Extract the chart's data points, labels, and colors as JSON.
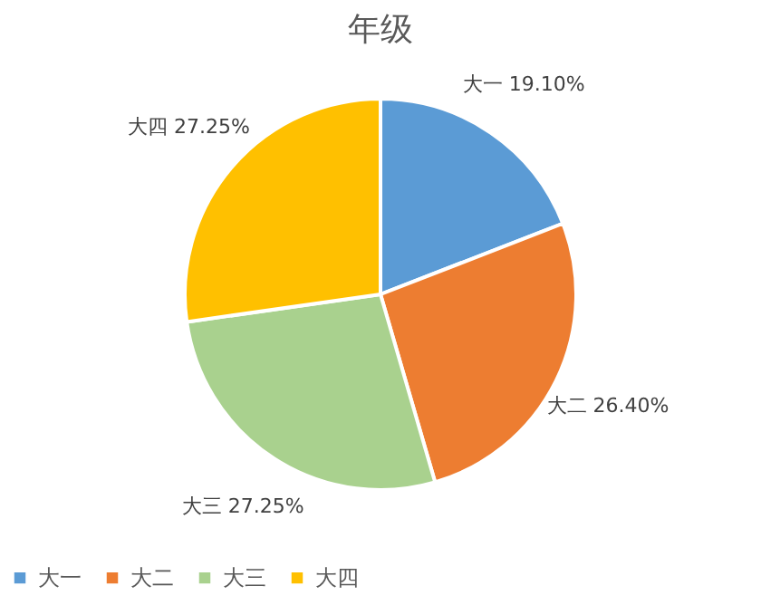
{
  "chart_data": {
    "type": "pie",
    "title": "年级",
    "categories": [
      "大一",
      "大二",
      "大三",
      "大四"
    ],
    "values": [
      19.1,
      26.4,
      27.25,
      27.25
    ],
    "colors": [
      "#5b9bd5",
      "#ed7d31",
      "#a9d18e",
      "#ffc000"
    ],
    "value_labels": [
      "19.10%",
      "26.40%",
      "27.25%",
      "27.25%"
    ],
    "legend": "bottom"
  }
}
